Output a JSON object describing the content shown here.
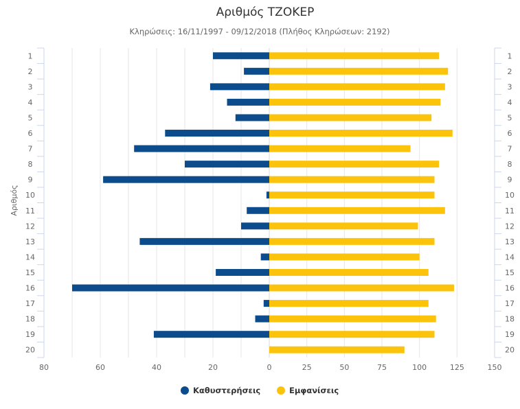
{
  "chart_data": {
    "type": "bar",
    "orientation": "horizontal",
    "title": "Αριθμός ΤΖΟΚΕΡ",
    "subtitle": "Κληρώσεις: 16/11/1997 - 09/12/2018 (Πλήθος Κληρώσεων: 2192)",
    "ylabel": "Αριθμός",
    "categories": [
      "1",
      "2",
      "3",
      "4",
      "5",
      "6",
      "7",
      "8",
      "9",
      "10",
      "11",
      "12",
      "13",
      "14",
      "15",
      "16",
      "17",
      "18",
      "19",
      "20"
    ],
    "series": [
      {
        "name": "Καθυστερήσεις",
        "color": "#0d4c8c",
        "axis": "left",
        "values": [
          20,
          9,
          21,
          15,
          12,
          37,
          48,
          30,
          59,
          1,
          8,
          10,
          46,
          3,
          19,
          70,
          2,
          5,
          41,
          0
        ]
      },
      {
        "name": "Εμφανίσεις",
        "color": "#fcc30d",
        "axis": "right",
        "values": [
          113,
          119,
          117,
          114,
          108,
          122,
          94,
          113,
          110,
          110,
          117,
          99,
          110,
          100,
          106,
          123,
          106,
          111,
          110,
          90
        ]
      }
    ],
    "left_axis": {
      "range": [
        80,
        0
      ],
      "ticks": [
        "80",
        "60",
        "40",
        "20",
        "0"
      ]
    },
    "right_axis": {
      "range": [
        0,
        150
      ],
      "ticks": [
        "25",
        "50",
        "75",
        "100",
        "125",
        "150"
      ]
    },
    "grid": true,
    "legend_position": "bottom-center"
  }
}
